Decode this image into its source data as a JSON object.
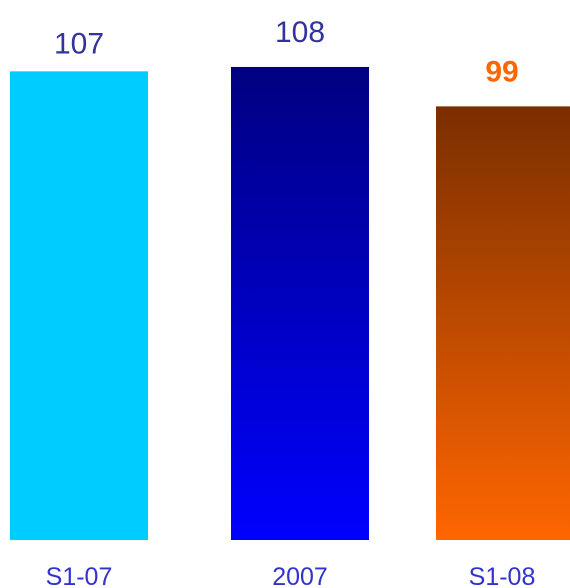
{
  "chart_data": {
    "type": "bar",
    "categories": [
      "S1-07",
      "2007",
      "S1-08"
    ],
    "values": [
      107,
      108,
      99
    ],
    "value_labels": [
      "107",
      "108",
      "99"
    ],
    "title": "",
    "xlabel": "",
    "ylabel": "",
    "grid": false,
    "legend": false,
    "colors": {
      "bars": [
        {
          "top": "#00ccff",
          "bottom": "#00ccff"
        },
        {
          "top": "#000080",
          "bottom": "#0000ff"
        },
        {
          "top": "#7a2e00",
          "bottom": "#ff6600"
        }
      ],
      "value_labels": [
        "#333399",
        "#333399",
        "#ff6600"
      ],
      "value_label_bold": [
        false,
        false,
        true
      ],
      "category_labels": "#3333cc"
    }
  }
}
